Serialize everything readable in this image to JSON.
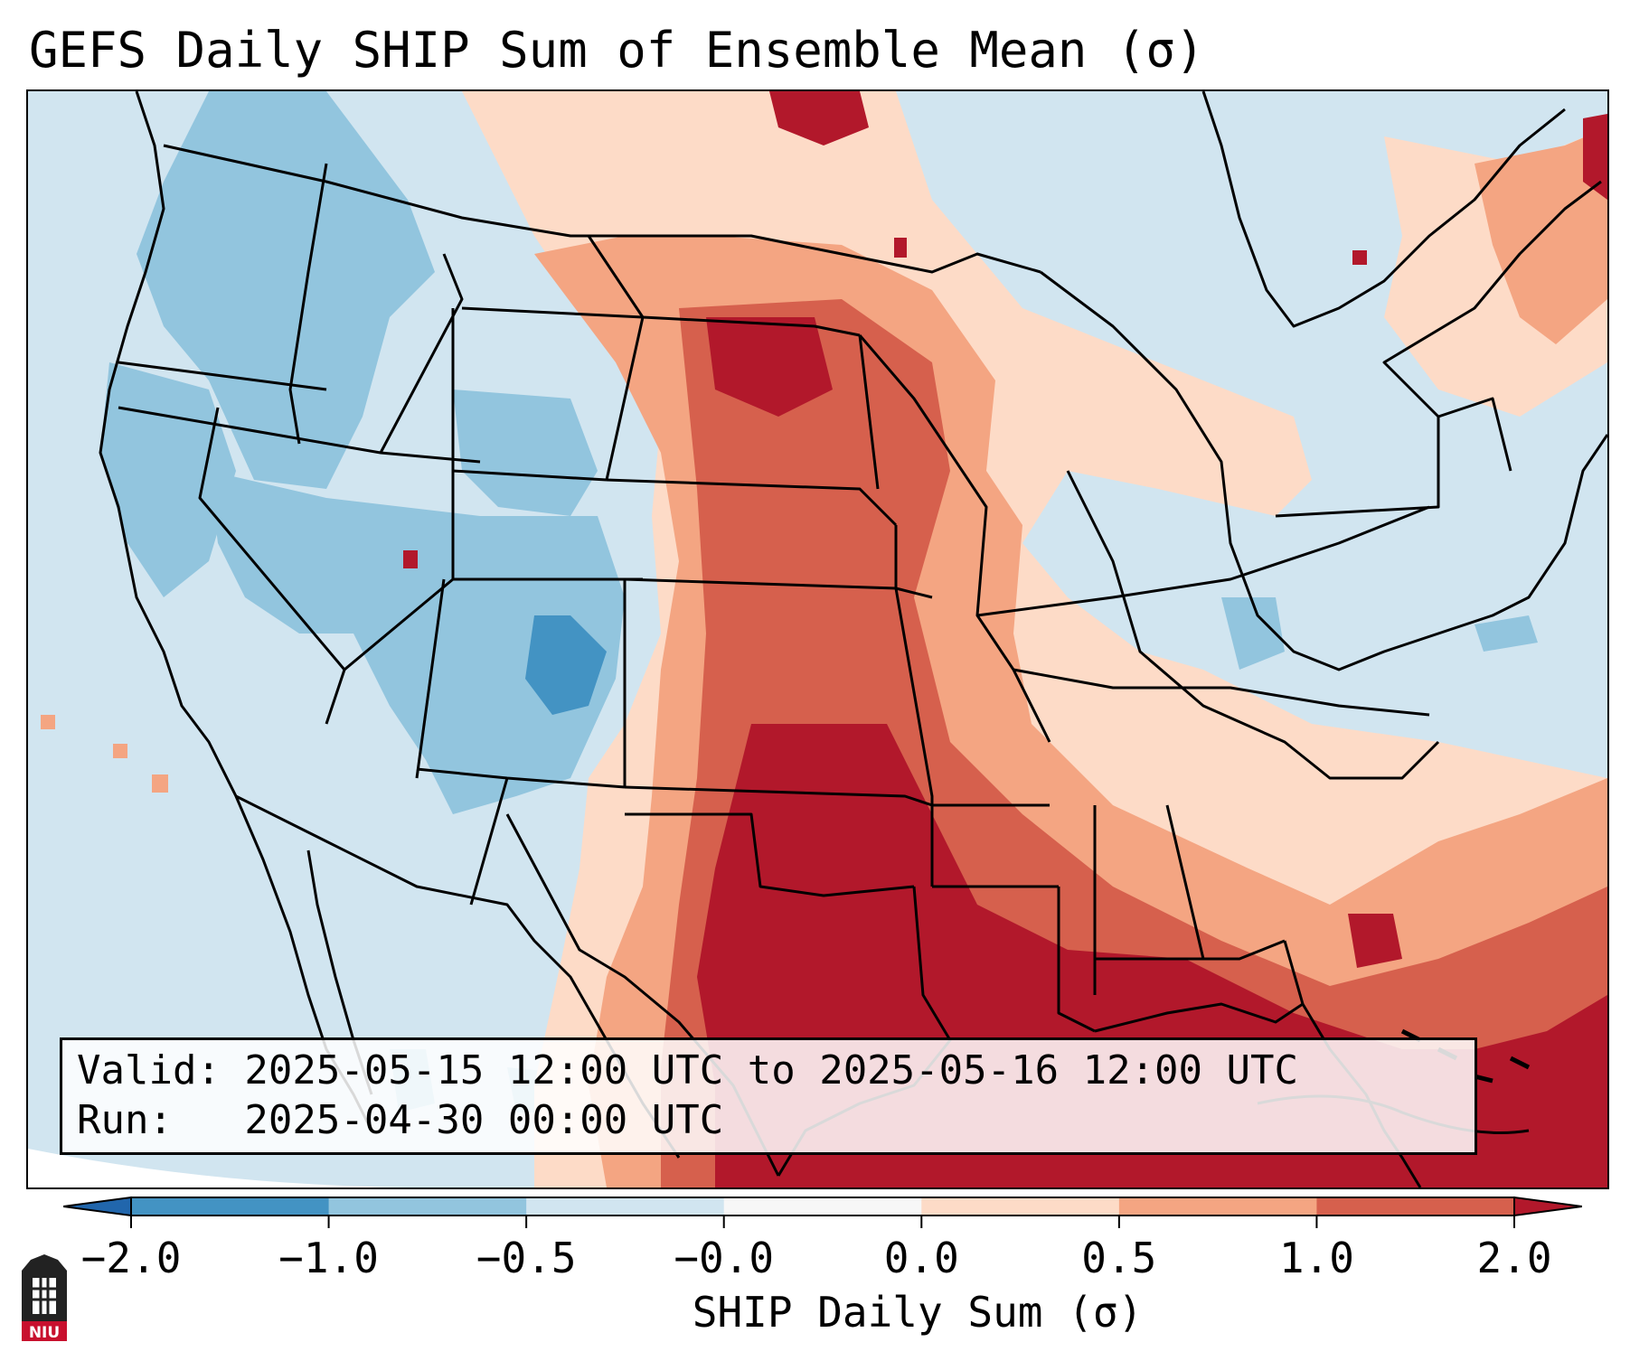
{
  "title": "GEFS Daily SHIP Sum of Ensemble Mean (σ)",
  "info": {
    "valid_line": "Valid: 2025-05-15 12:00 UTC to 2025-05-16 12:00 UTC",
    "run_line": "Run:   2025-04-30 00:00 UTC"
  },
  "colorbar": {
    "label": "SHIP Daily Sum (σ)",
    "ticks": [
      "−2.0",
      "−1.0",
      "−0.5",
      "−0.0",
      "0.0",
      "0.5",
      "1.0",
      "2.0"
    ],
    "colors": [
      "#2166ac",
      "#4393c3",
      "#92c5de",
      "#d1e5f0",
      "#f7f7f7",
      "#fddbc7",
      "#f4a582",
      "#d6604d",
      "#b2182b"
    ]
  },
  "logo": {
    "icon": "niu-logo-icon",
    "text": "NIU"
  },
  "map": {
    "ocean_color": "#d1e5f0",
    "border_color": "#000000"
  }
}
